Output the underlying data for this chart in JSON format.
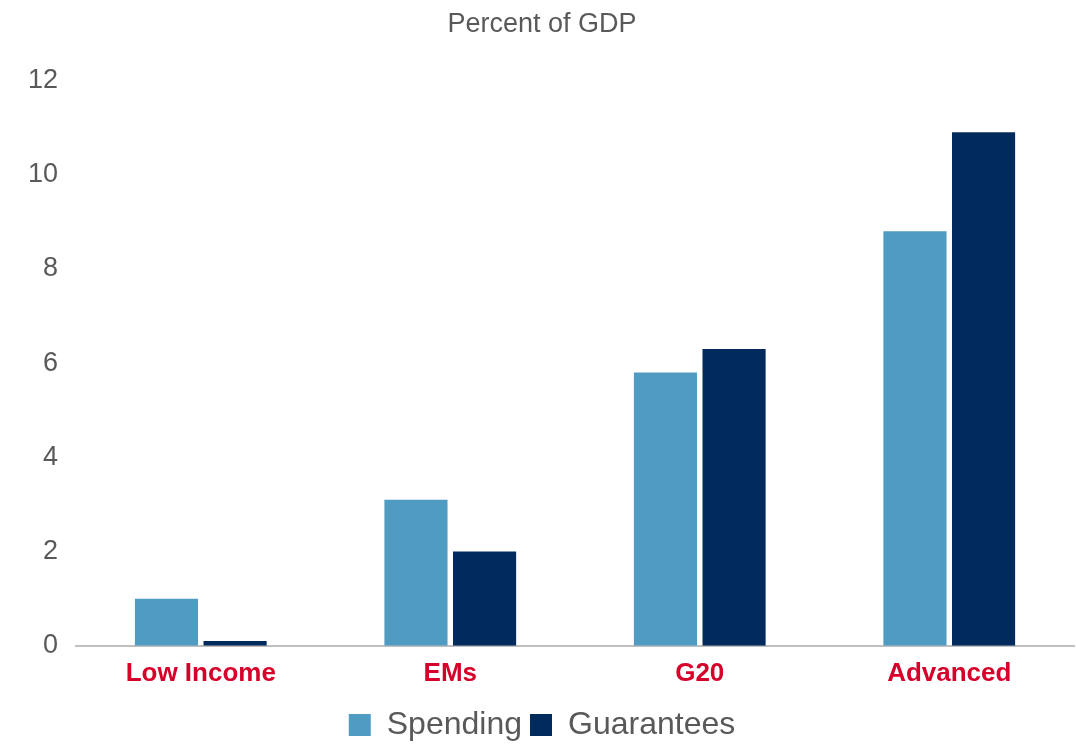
{
  "chart_data": {
    "type": "bar",
    "title": "Percent of GDP",
    "categories": [
      "Low Income",
      "EMs",
      "G20",
      "Advanced"
    ],
    "series": [
      {
        "name": "Spending",
        "color": "#4f9bc2",
        "values": [
          1.0,
          3.1,
          5.8,
          8.8
        ]
      },
      {
        "name": "Guarantees",
        "color": "#002b5c",
        "values": [
          0.1,
          2.0,
          6.3,
          10.9
        ]
      }
    ],
    "ylim": [
      0,
      12
    ],
    "yticks": [
      0,
      2,
      4,
      6,
      8,
      10,
      12
    ],
    "grid": false,
    "legend": "bottom"
  }
}
